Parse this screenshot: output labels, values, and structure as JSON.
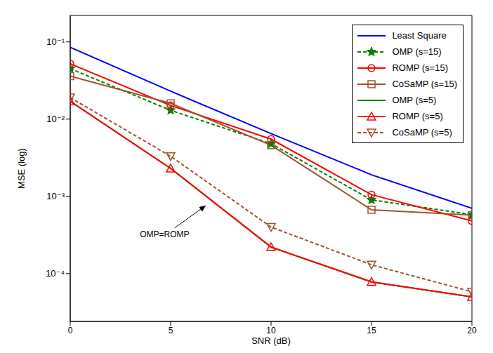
{
  "chart_data": {
    "type": "line",
    "x_label": "SNR (dB)",
    "y_label": "MSE (log)",
    "log": "y",
    "grid": false,
    "legend": "upper right",
    "x": [
      0,
      5,
      10,
      15,
      20
    ],
    "xlim": [
      0,
      20
    ],
    "xticks": [
      0,
      5,
      10,
      15,
      20
    ],
    "ylim": [
      2.4e-05,
      0.22
    ],
    "yticks": [
      {
        "value": 0.0001,
        "label": "10⁻⁴"
      },
      {
        "value": 0.001,
        "label": "10⁻³"
      },
      {
        "value": 0.01,
        "label": "10⁻²"
      },
      {
        "value": 0.1,
        "label": "10⁻¹"
      }
    ],
    "series": [
      {
        "name": "Least Square",
        "color": "#0000ff",
        "marker": "none",
        "line_style": "solid",
        "values": [
          0.085,
          0.023,
          0.0065,
          0.0019,
          0.0007
        ]
      },
      {
        "name": "OMP (s=15)",
        "color": "#008000",
        "marker": "star",
        "line_style": "dashed",
        "values": [
          0.045,
          0.013,
          0.0048,
          0.0009,
          0.00058
        ]
      },
      {
        "name": "ROMP (s=15)",
        "color": "#ff0000",
        "marker": "circle",
        "line_style": "solid",
        "values": [
          0.052,
          0.015,
          0.0055,
          0.00105,
          0.00048
        ]
      },
      {
        "name": "CoSaMP (s=15)",
        "color": "#a0522d",
        "marker": "square",
        "line_style": "solid",
        "values": [
          0.036,
          0.016,
          0.0046,
          0.00067,
          0.00057
        ]
      },
      {
        "name": "OMP (s=5)",
        "color": "#008000",
        "marker": "none",
        "line_style": "solid",
        "values": [
          0.017,
          0.0023,
          0.00022,
          7.8e-05,
          5e-05
        ]
      },
      {
        "name": "ROMP (s=5)",
        "color": "#ff0000",
        "marker": "triangle",
        "line_style": "solid",
        "values": [
          0.017,
          0.0023,
          0.00022,
          7.8e-05,
          5e-05
        ]
      },
      {
        "name": "CoSaMP (s=5)",
        "color": "#a0522d",
        "marker": "triangle_down",
        "line_style": "dashed",
        "values": [
          0.019,
          0.0033,
          0.0004,
          0.00013,
          5.8e-05
        ]
      }
    ],
    "annotations": [
      {
        "text": "OMP=ROMP",
        "x": 4.7,
        "y": 0.00032,
        "arrow_from": [
          5.2,
          0.00039
        ],
        "arrow_to": [
          6.75,
          0.00076
        ]
      }
    ]
  }
}
